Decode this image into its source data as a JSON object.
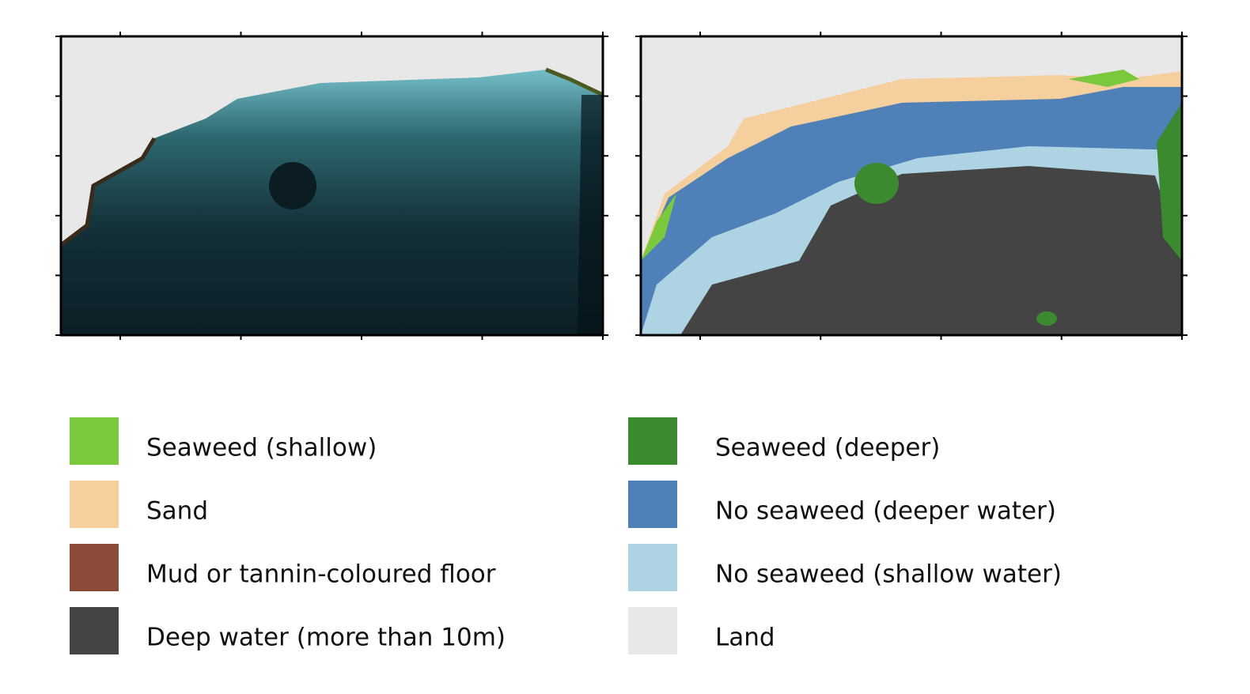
{
  "legend": {
    "items": [
      {
        "label": "Seaweed (shallow)",
        "color": "#7cc83c"
      },
      {
        "label": "Sand",
        "color": "#f6cf9f"
      },
      {
        "label": "Mud or tannin-coloured floor",
        "color": "#8a4b39"
      },
      {
        "label": "Deep water (more than 10m)",
        "color": "#444444"
      },
      {
        "label": "Seaweed (deeper)",
        "color": "#3b8a2f"
      },
      {
        "label": "No seaweed (deeper water)",
        "color": "#4f80b8"
      },
      {
        "label": "No seaweed (shallow water)",
        "color": "#aed4e4"
      },
      {
        "label": "Land",
        "color": "#e8e8e8"
      }
    ]
  }
}
